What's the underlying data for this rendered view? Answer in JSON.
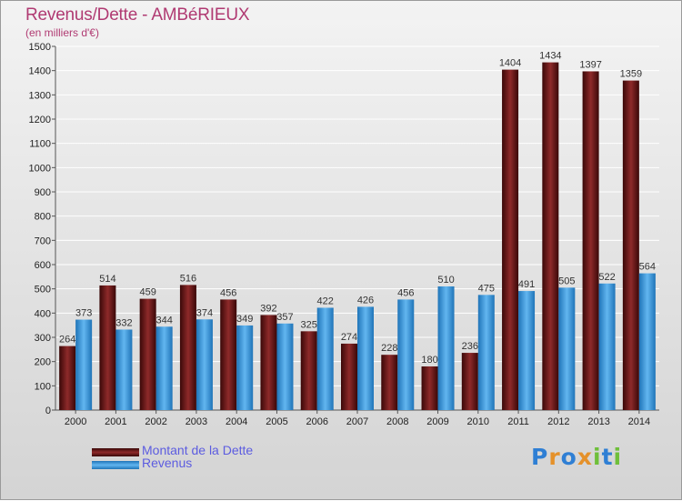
{
  "header": {
    "title": "Revenus/Dette - AMBéRIEUX",
    "subtitle": "(en milliers d'€)"
  },
  "colors": {
    "dette": "#7d1d1d",
    "revenus": "#4aa3e6",
    "title": "#b03a72",
    "legend_text": "#5c5ce0"
  },
  "legend": {
    "placement": "bottom-left",
    "items": [
      {
        "label": "Montant de la Dette",
        "color": "#7d1d1d"
      },
      {
        "label": "Revenus",
        "color": "#4aa3e6"
      }
    ]
  },
  "logo": {
    "text": "Proxiti",
    "letters": [
      {
        "ch": "P",
        "color": "#2f7fd4"
      },
      {
        "ch": "r",
        "color": "#e5912a"
      },
      {
        "ch": "o",
        "color": "#2f7fd4"
      },
      {
        "ch": "x",
        "color": "#e5912a"
      },
      {
        "ch": "i",
        "color": "#6fbf3a"
      },
      {
        "ch": "t",
        "color": "#2f7fd4"
      },
      {
        "ch": "i",
        "color": "#6fbf3a"
      }
    ]
  },
  "chart_data": {
    "type": "bar",
    "title": "Revenus/Dette - AMBéRIEUX",
    "subtitle": "(en milliers d'€)",
    "categories": [
      "2000",
      "2001",
      "2002",
      "2003",
      "2004",
      "2005",
      "2006",
      "2007",
      "2008",
      "2009",
      "2010",
      "2011",
      "2012",
      "2013",
      "2014"
    ],
    "series": [
      {
        "name": "Montant de la Dette",
        "values": [
          264,
          514,
          459,
          516,
          456,
          392,
          325,
          274,
          228,
          180,
          236,
          1404,
          1434,
          1397,
          1359
        ]
      },
      {
        "name": "Revenus",
        "values": [
          373,
          332,
          344,
          374,
          349,
          357,
          422,
          426,
          456,
          510,
          475,
          491,
          505,
          522,
          564
        ]
      }
    ],
    "ylim": [
      0,
      1500
    ],
    "yticks": [
      0,
      100,
      200,
      300,
      400,
      500,
      600,
      700,
      800,
      900,
      1000,
      1100,
      1200,
      1300,
      1400,
      1500
    ],
    "grid": true,
    "legend_position": "bottom-left"
  }
}
